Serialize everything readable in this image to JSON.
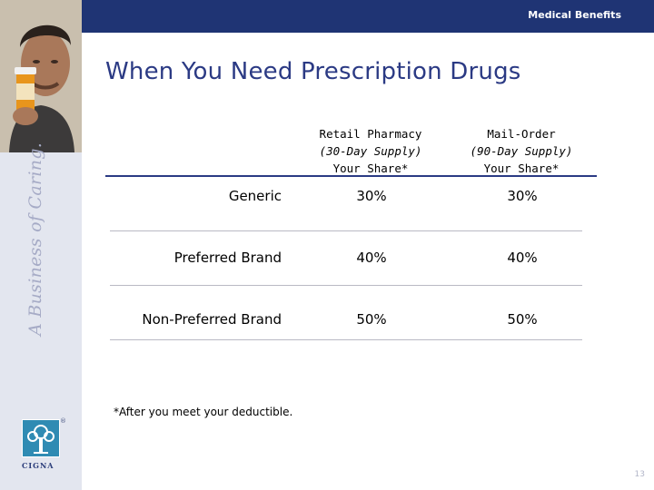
{
  "header": {
    "label": "Medical Benefits"
  },
  "sidebar": {
    "tagline": "A Business of Caring.",
    "logo_text": "CIGNA",
    "logo_mark": "®"
  },
  "title": "When You Need Prescription Drugs",
  "table": {
    "columns": [
      {
        "line1": "Retail Pharmacy",
        "line2": "(30-Day Supply)",
        "line3": "Your Share*"
      },
      {
        "line1": "Mail-Order",
        "line2": "(90-Day Supply)",
        "line3": "Your Share*"
      }
    ],
    "rows": [
      {
        "label": "Generic",
        "retail": "30%",
        "mail": "30%"
      },
      {
        "label": "Preferred Brand",
        "retail": "40%",
        "mail": "40%"
      },
      {
        "label": "Non-Preferred Brand",
        "retail": "50%",
        "mail": "50%"
      }
    ]
  },
  "footnote": "*After you meet your deductible.",
  "page_number": "13"
}
